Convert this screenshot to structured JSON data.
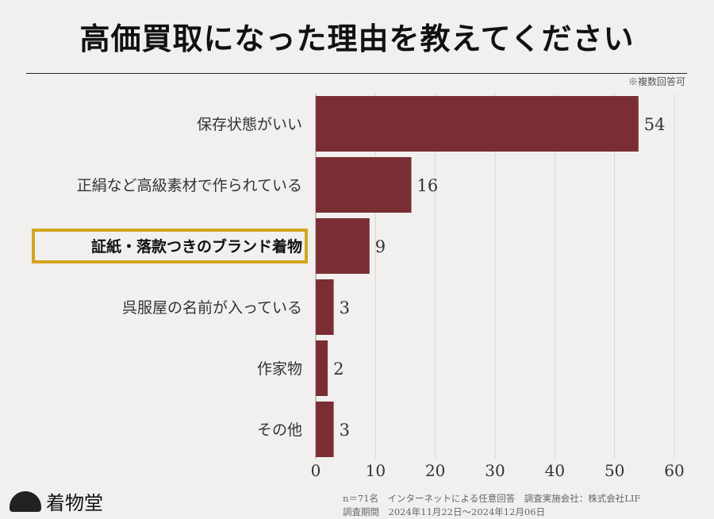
{
  "title": "高価買取になった理由を教えてください",
  "note": "※複数回答可",
  "chart_data": {
    "type": "bar",
    "orientation": "horizontal",
    "categories": [
      "保存状態がいい",
      "正絹など高級素材で作られている",
      "証紙・落款つきのブランド着物",
      "呉服屋の名前が入っている",
      "作家物",
      "その他"
    ],
    "values": [
      54,
      16,
      9,
      3,
      2,
      3
    ],
    "highlighted_category": "証紙・落款つきのブランド着物",
    "xlim": [
      0,
      60
    ],
    "xticks": [
      0,
      10,
      20,
      30,
      40,
      50,
      60
    ],
    "grid": true,
    "bar_color": "#7a2e33",
    "highlight_color": "#d4a520"
  },
  "footer": {
    "line1": "n＝71名　インターネットによる任意回答　調査実施会社：株式会社LIF",
    "line2": "調査期間　2024年11月22日～2024年12月06日"
  },
  "logo": {
    "text": "着物堂"
  }
}
